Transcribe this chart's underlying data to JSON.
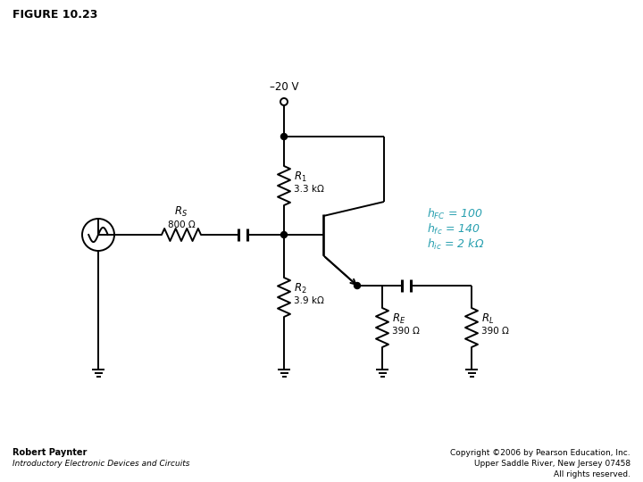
{
  "title": "FIGURE 10.23",
  "bg_color": "#ffffff",
  "circuit_color": "#000000",
  "text_color_blue": "#29a0b0",
  "author_line1": "Robert Paynter",
  "author_line2": "Introductory Electronic Devices and Circuits",
  "copyright_line1": "Copyright ©2006 by Pearson Education, Inc.",
  "copyright_line2": "Upper Saddle River, New Jersey 07458",
  "copyright_line3": "All rights reserved.",
  "supply_label": "–20 V",
  "R1_val": "3.3 kΩ",
  "R2_val": "3.9 kΩ",
  "RS_val": "800 Ω",
  "RE_val": "390 Ω",
  "RL_val": "390 Ω"
}
